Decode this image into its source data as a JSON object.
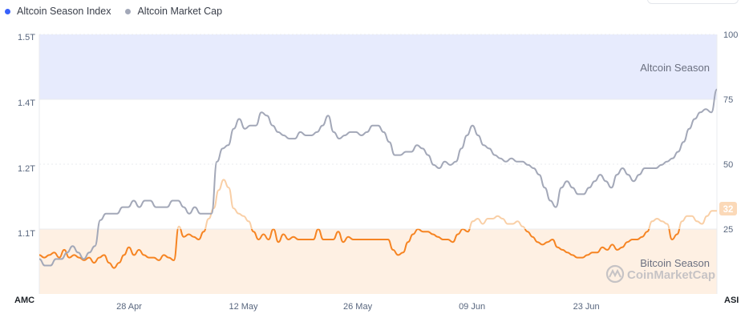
{
  "legend": {
    "series1": "Altcoin Season Index",
    "series2": "Altcoin Market Cap"
  },
  "colors": {
    "index_dot": "#3861fb",
    "mcap_line": "#a3a8b8",
    "index_orange": "#f68422",
    "index_light": "#f9cfa6",
    "altseason_band": "#e7ebfd",
    "bitseason_band": "#fef0e3"
  },
  "zones": {
    "altcoin": "Altcoin Season",
    "bitcoin": "Bitcoin Season"
  },
  "watermark": "CoinMarketCap",
  "axis": {
    "left_title": "AMC",
    "right_title": "ASI",
    "left_ticks": [
      "1.5T",
      "1.4T",
      "1.2T",
      "1.1T"
    ],
    "right_ticks": [
      "100",
      "75",
      "50",
      "25"
    ],
    "x_ticks": [
      "28 Apr",
      "12 May",
      "26 May",
      "09 Jun",
      "23 Jun"
    ]
  },
  "current_badge": "32",
  "chart_data": {
    "type": "line",
    "title": "",
    "x_range": [
      "2024-04-17",
      "2024-07-09"
    ],
    "y_left": {
      "label": "AMC",
      "ticks": [
        "1.5T",
        "1.4T",
        "1.2T",
        "1.1T"
      ]
    },
    "y_right": {
      "label": "ASI",
      "ylim": [
        0,
        100
      ],
      "ticks": [
        100,
        75,
        50,
        25
      ]
    },
    "grid": true,
    "legend_position": "top-left",
    "zones": [
      {
        "name": "Altcoin Season",
        "from": 75,
        "to": 100
      },
      {
        "name": "Bitcoin Season",
        "from": 0,
        "to": 25
      }
    ],
    "series": [
      {
        "name": "Altcoin Season Index",
        "axis": "right",
        "values": [
          15,
          14,
          15,
          16,
          14,
          17,
          14,
          15,
          14,
          13,
          14,
          12,
          14,
          15,
          12,
          10,
          12,
          15,
          18,
          15,
          17,
          15,
          14,
          14,
          13,
          15,
          14,
          13,
          26,
          22,
          23,
          22,
          21,
          24,
          29,
          33,
          40,
          44,
          41,
          33,
          31,
          30,
          28,
          24,
          21,
          23,
          21,
          25,
          20,
          23,
          21,
          22,
          21,
          21,
          21,
          21,
          25,
          21,
          21,
          21,
          24,
          20,
          22,
          21,
          21,
          21,
          21,
          21,
          21,
          21,
          21,
          17,
          15,
          16,
          20,
          23,
          25,
          24,
          24,
          23,
          22,
          21,
          21,
          20,
          23,
          25,
          24,
          28,
          29,
          27,
          29,
          29,
          30,
          29,
          27,
          27,
          28,
          26,
          24,
          22,
          20,
          19,
          20,
          21,
          18,
          17,
          16,
          15,
          14,
          14,
          15,
          16,
          16,
          18,
          17,
          19,
          17,
          18,
          20,
          21,
          21,
          22,
          24,
          28,
          29,
          28,
          27,
          21,
          23,
          28,
          30,
          30,
          28,
          27,
          30,
          32,
          32
        ]
      },
      {
        "name": "Altcoin Market Cap",
        "axis": "left",
        "values": [
          1.06,
          1.05,
          1.05,
          1.06,
          1.06,
          1.07,
          1.08,
          1.07,
          1.06,
          1.07,
          1.08,
          1.12,
          1.13,
          1.13,
          1.13,
          1.14,
          1.14,
          1.15,
          1.14,
          1.15,
          1.15,
          1.14,
          1.14,
          1.14,
          1.15,
          1.15,
          1.14,
          1.13,
          1.14,
          1.13,
          1.13,
          1.13,
          1.22,
          1.26,
          1.27,
          1.32,
          1.35,
          1.32,
          1.33,
          1.33,
          1.37,
          1.36,
          1.33,
          1.31,
          1.3,
          1.29,
          1.29,
          1.31,
          1.3,
          1.3,
          1.31,
          1.33,
          1.36,
          1.31,
          1.29,
          1.3,
          1.31,
          1.31,
          1.3,
          1.31,
          1.33,
          1.33,
          1.31,
          1.28,
          1.24,
          1.24,
          1.25,
          1.25,
          1.27,
          1.26,
          1.24,
          1.21,
          1.2,
          1.22,
          1.21,
          1.22,
          1.26,
          1.3,
          1.33,
          1.3,
          1.27,
          1.26,
          1.24,
          1.23,
          1.22,
          1.23,
          1.22,
          1.22,
          1.21,
          1.2,
          1.19,
          1.17,
          1.15,
          1.14,
          1.17,
          1.18,
          1.17,
          1.16,
          1.16,
          1.17,
          1.18,
          1.19,
          1.18,
          1.17,
          1.19,
          1.2,
          1.19,
          1.18,
          1.19,
          1.2,
          1.2,
          1.2,
          1.21,
          1.22,
          1.23,
          1.25,
          1.28,
          1.32,
          1.35,
          1.37,
          1.38,
          1.37,
          1.42
        ]
      }
    ]
  }
}
